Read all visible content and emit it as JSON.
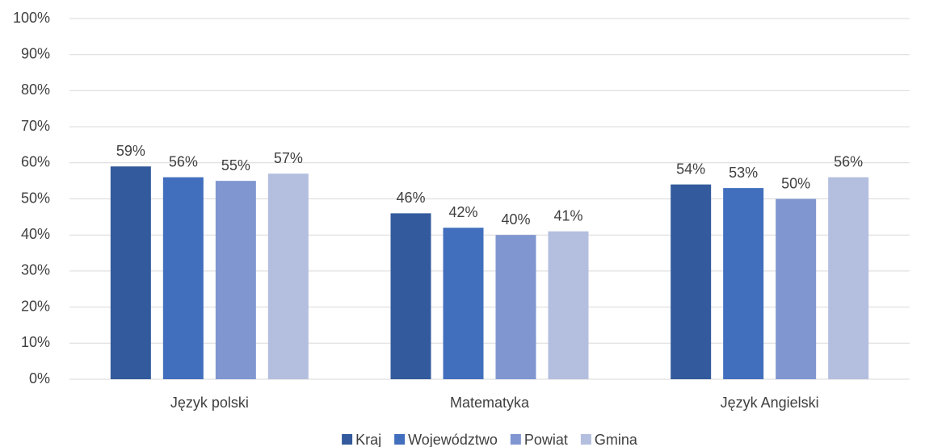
{
  "chart_data": {
    "type": "bar",
    "categories": [
      "Język polski",
      "Matematyka",
      "Język Angielski"
    ],
    "series": [
      {
        "name": "Kraj",
        "color": "#335a9c",
        "values": [
          59,
          46,
          54
        ],
        "value_labels": [
          "59%",
          "46%",
          "54%"
        ]
      },
      {
        "name": "Województwo",
        "color": "#416fbd",
        "values": [
          56,
          42,
          53
        ],
        "value_labels": [
          "56%",
          "42%",
          "53%"
        ]
      },
      {
        "name": "Powiat",
        "color": "#7f96d0",
        "values": [
          55,
          40,
          50
        ],
        "value_labels": [
          "55%",
          "40%",
          "50%"
        ]
      },
      {
        "name": "Gmina",
        "color": "#b4bedf",
        "values": [
          57,
          41,
          56
        ],
        "value_labels": [
          "57%",
          "41%",
          "56%"
        ]
      }
    ],
    "ylim": [
      0,
      100
    ],
    "yticks": [
      {
        "value": 0,
        "label": "0%"
      },
      {
        "value": 10,
        "label": "10%"
      },
      {
        "value": 20,
        "label": "20%"
      },
      {
        "value": 30,
        "label": "30%"
      },
      {
        "value": 40,
        "label": "40%"
      },
      {
        "value": 50,
        "label": "50%"
      },
      {
        "value": 60,
        "label": "60%"
      },
      {
        "value": 70,
        "label": "70%"
      },
      {
        "value": 80,
        "label": "80%"
      },
      {
        "value": 90,
        "label": "90%"
      },
      {
        "value": 100,
        "label": "100%"
      }
    ],
    "grid": true,
    "legend": "bottom"
  }
}
